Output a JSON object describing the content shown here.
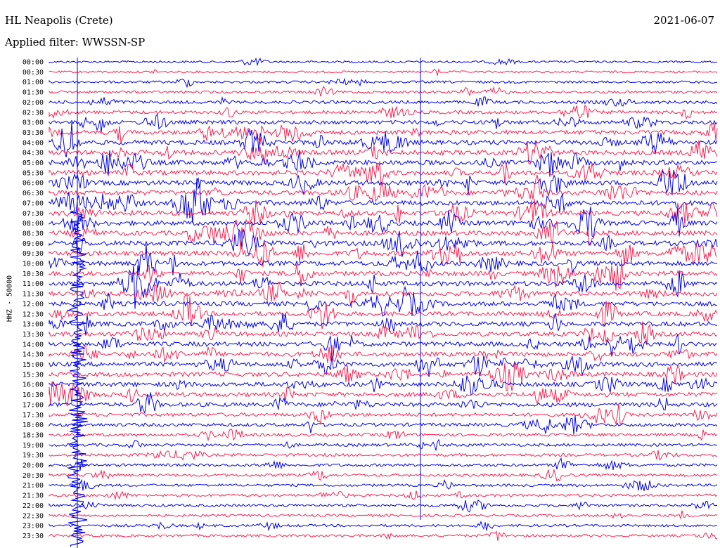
{
  "header": {
    "station": "HL Neapolis (Crete)",
    "filter": "Applied filter: WWSSN-SP",
    "date": "2021-06-07"
  },
  "chart_data": {
    "type": "line",
    "title": "HL Neapolis (Crete)",
    "subtitle": "Applied filter: WWSSN-SP",
    "ylabel": "HHZ - 50000",
    "xlabel": "",
    "row_labels": [
      "00:00",
      "00:30",
      "01:00",
      "01:30",
      "02:00",
      "02:30",
      "03:00",
      "03:30",
      "04:00",
      "04:30",
      "05:00",
      "05:30",
      "06:00",
      "06:30",
      "07:00",
      "07:30",
      "08:00",
      "08:30",
      "09:00",
      "09:30",
      "10:00",
      "10:30",
      "11:00",
      "11:30",
      "12:00",
      "12:30",
      "13:00",
      "13:30",
      "14:00",
      "14:30",
      "15:00",
      "15:30",
      "16:00",
      "16:30",
      "17:00",
      "17:30",
      "18:00",
      "18:30",
      "19:00",
      "19:30",
      "20:00",
      "20:30",
      "21:00",
      "21:30",
      "22:00",
      "22:30",
      "23:00",
      "23:30"
    ],
    "series_colors": [
      "#0000ee",
      "#ff1f4f"
    ],
    "activity": [
      0.12,
      0.12,
      0.25,
      0.28,
      0.45,
      0.55,
      0.7,
      0.85,
      0.95,
      1.0,
      1.0,
      1.0,
      1.0,
      1.0,
      1.0,
      1.0,
      1.0,
      1.0,
      1.0,
      1.0,
      0.95,
      0.95,
      0.95,
      0.95,
      0.9,
      0.9,
      0.9,
      0.9,
      0.9,
      0.9,
      0.9,
      0.9,
      0.9,
      0.85,
      0.75,
      0.6,
      0.55,
      0.45,
      0.4,
      0.4,
      0.35,
      0.35,
      0.3,
      0.3,
      0.3,
      0.25,
      0.25,
      0.25
    ],
    "grid": false
  }
}
